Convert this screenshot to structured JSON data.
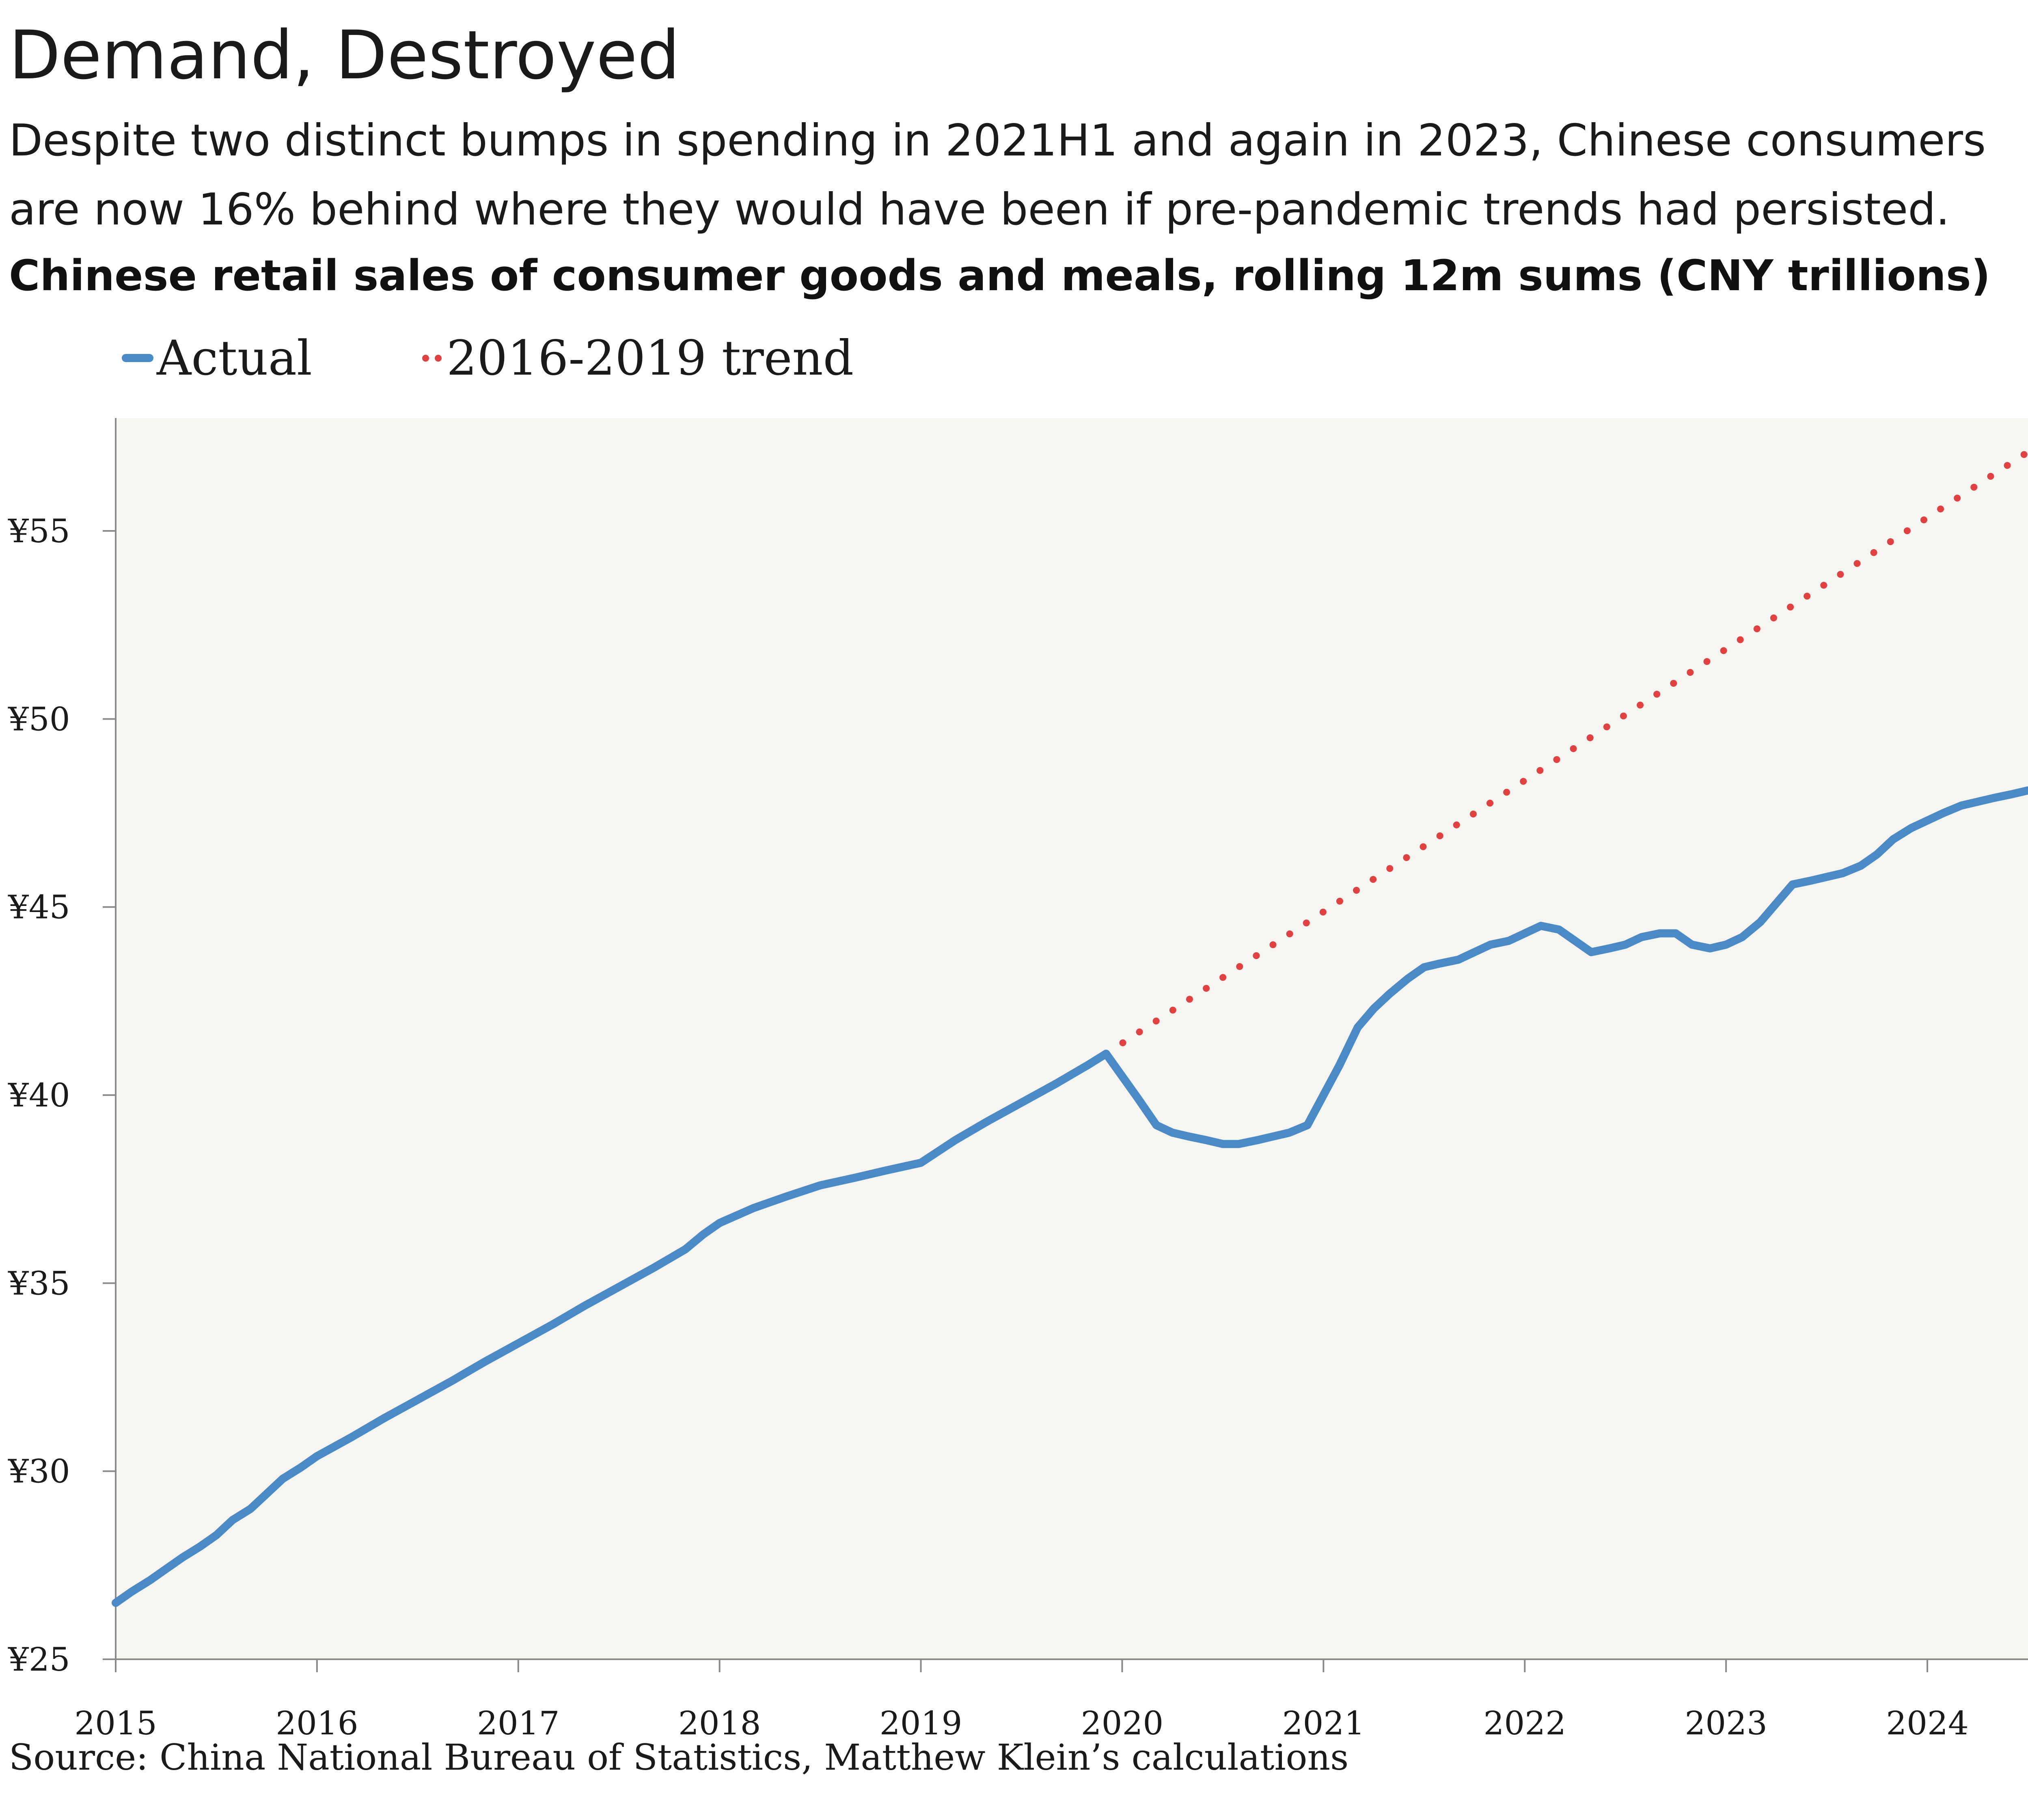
{
  "header": {
    "title": "Demand, Destroyed",
    "subtitle": "Despite two distinct bumps in spending in 2021H1 and again in 2023, Chinese consumers are now 16% behind where they would have been if pre-pandemic trends had persisted."
  },
  "footer": {
    "source": "Source: China National Bureau of Statistics, Matthew Klein’s calculations"
  },
  "chart_data": {
    "type": "line",
    "title": "Chinese retail sales of consumer goods and meals, rolling 12m sums (CNY trillions)",
    "xlabel": "",
    "ylabel": "",
    "ylim": [
      25,
      58
    ],
    "xlim": [
      2015.0,
      2024.5
    ],
    "y_ticks": [
      25,
      30,
      35,
      40,
      45,
      50,
      55
    ],
    "y_tick_labels": [
      "¥25",
      "¥30",
      "¥35",
      "¥40",
      "¥45",
      "¥50",
      "¥55"
    ],
    "x_ticks": [
      2015,
      2016,
      2017,
      2018,
      2019,
      2020,
      2021,
      2022,
      2023,
      2024
    ],
    "x_tick_labels": [
      "2015",
      "2016",
      "2017",
      "2018",
      "2019",
      "2020",
      "2021",
      "2022",
      "2023",
      "2024"
    ],
    "grid": false,
    "background": "#f6f5f2",
    "legend": {
      "placement": "top-left"
    },
    "series": [
      {
        "name": "Actual",
        "style": "solid",
        "color": "#4a8ac6",
        "points": [
          [
            2015.0,
            26.5
          ],
          [
            2015.08,
            26.8
          ],
          [
            2015.17,
            27.1
          ],
          [
            2015.25,
            27.4
          ],
          [
            2015.33,
            27.7
          ],
          [
            2015.42,
            28.0
          ],
          [
            2015.5,
            28.3
          ],
          [
            2015.58,
            28.7
          ],
          [
            2015.67,
            29.0
          ],
          [
            2015.75,
            29.4
          ],
          [
            2015.83,
            29.8
          ],
          [
            2015.92,
            30.1
          ],
          [
            2016.0,
            30.4
          ],
          [
            2016.17,
            30.9
          ],
          [
            2016.33,
            31.4
          ],
          [
            2016.5,
            31.9
          ],
          [
            2016.67,
            32.4
          ],
          [
            2016.83,
            32.9
          ],
          [
            2017.0,
            33.4
          ],
          [
            2017.17,
            33.9
          ],
          [
            2017.33,
            34.4
          ],
          [
            2017.5,
            34.9
          ],
          [
            2017.67,
            35.4
          ],
          [
            2017.83,
            35.9
          ],
          [
            2017.92,
            36.3
          ],
          [
            2018.0,
            36.6
          ],
          [
            2018.17,
            37.0
          ],
          [
            2018.33,
            37.3
          ],
          [
            2018.5,
            37.6
          ],
          [
            2018.67,
            37.8
          ],
          [
            2018.83,
            38.0
          ],
          [
            2019.0,
            38.2
          ],
          [
            2019.17,
            38.8
          ],
          [
            2019.33,
            39.3
          ],
          [
            2019.5,
            39.8
          ],
          [
            2019.67,
            40.3
          ],
          [
            2019.83,
            40.8
          ],
          [
            2019.92,
            41.1
          ],
          [
            2020.0,
            40.5
          ],
          [
            2020.08,
            39.9
          ],
          [
            2020.17,
            39.2
          ],
          [
            2020.25,
            39.0
          ],
          [
            2020.33,
            38.9
          ],
          [
            2020.42,
            38.8
          ],
          [
            2020.5,
            38.7
          ],
          [
            2020.58,
            38.7
          ],
          [
            2020.67,
            38.8
          ],
          [
            2020.75,
            38.9
          ],
          [
            2020.83,
            39.0
          ],
          [
            2020.92,
            39.2
          ],
          [
            2021.0,
            40.0
          ],
          [
            2021.08,
            40.8
          ],
          [
            2021.17,
            41.8
          ],
          [
            2021.25,
            42.3
          ],
          [
            2021.33,
            42.7
          ],
          [
            2021.42,
            43.1
          ],
          [
            2021.5,
            43.4
          ],
          [
            2021.58,
            43.5
          ],
          [
            2021.67,
            43.6
          ],
          [
            2021.75,
            43.8
          ],
          [
            2021.83,
            44.0
          ],
          [
            2021.92,
            44.1
          ],
          [
            2022.0,
            44.3
          ],
          [
            2022.08,
            44.5
          ],
          [
            2022.17,
            44.4
          ],
          [
            2022.25,
            44.1
          ],
          [
            2022.33,
            43.8
          ],
          [
            2022.42,
            43.9
          ],
          [
            2022.5,
            44.0
          ],
          [
            2022.58,
            44.2
          ],
          [
            2022.67,
            44.3
          ],
          [
            2022.75,
            44.3
          ],
          [
            2022.83,
            44.0
          ],
          [
            2022.92,
            43.9
          ],
          [
            2023.0,
            44.0
          ],
          [
            2023.08,
            44.2
          ],
          [
            2023.17,
            44.6
          ],
          [
            2023.25,
            45.1
          ],
          [
            2023.33,
            45.6
          ],
          [
            2023.42,
            45.7
          ],
          [
            2023.5,
            45.8
          ],
          [
            2023.58,
            45.9
          ],
          [
            2023.67,
            46.1
          ],
          [
            2023.75,
            46.4
          ],
          [
            2023.83,
            46.8
          ],
          [
            2023.92,
            47.1
          ],
          [
            2024.0,
            47.3
          ],
          [
            2024.08,
            47.5
          ],
          [
            2024.17,
            47.7
          ],
          [
            2024.25,
            47.8
          ],
          [
            2024.33,
            47.9
          ],
          [
            2024.42,
            48.0
          ],
          [
            2024.5,
            48.1
          ]
        ]
      },
      {
        "name": "2016-2019 trend",
        "style": "dotted",
        "color": "#e04242",
        "points": [
          [
            2019.92,
            41.1
          ],
          [
            2024.5,
            57.1
          ]
        ]
      }
    ]
  }
}
